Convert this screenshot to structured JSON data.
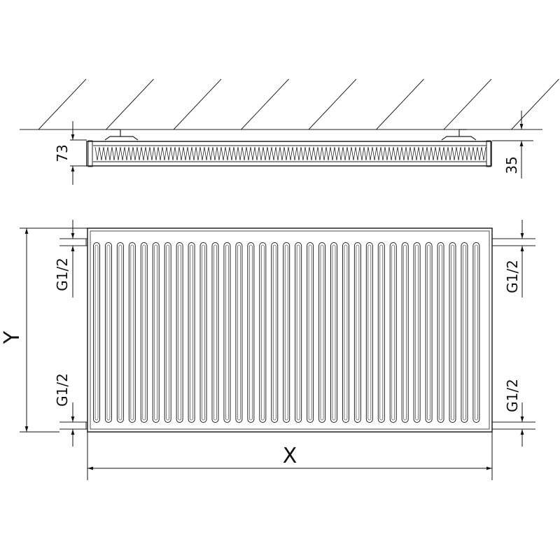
{
  "top_view": {
    "depth_label": "73",
    "wall_gap_label": "35"
  },
  "front_view": {
    "height_label": "Y",
    "width_label": "X",
    "connections": [
      {
        "side": "left",
        "position": "top",
        "label": "G1/2"
      },
      {
        "side": "left",
        "position": "bottom",
        "label": "G1/2"
      },
      {
        "side": "right",
        "position": "top",
        "label": "G1/2"
      },
      {
        "side": "right",
        "position": "bottom",
        "label": "G1/2"
      }
    ]
  },
  "colors": {
    "line": "#222222",
    "background": "#ffffff"
  }
}
